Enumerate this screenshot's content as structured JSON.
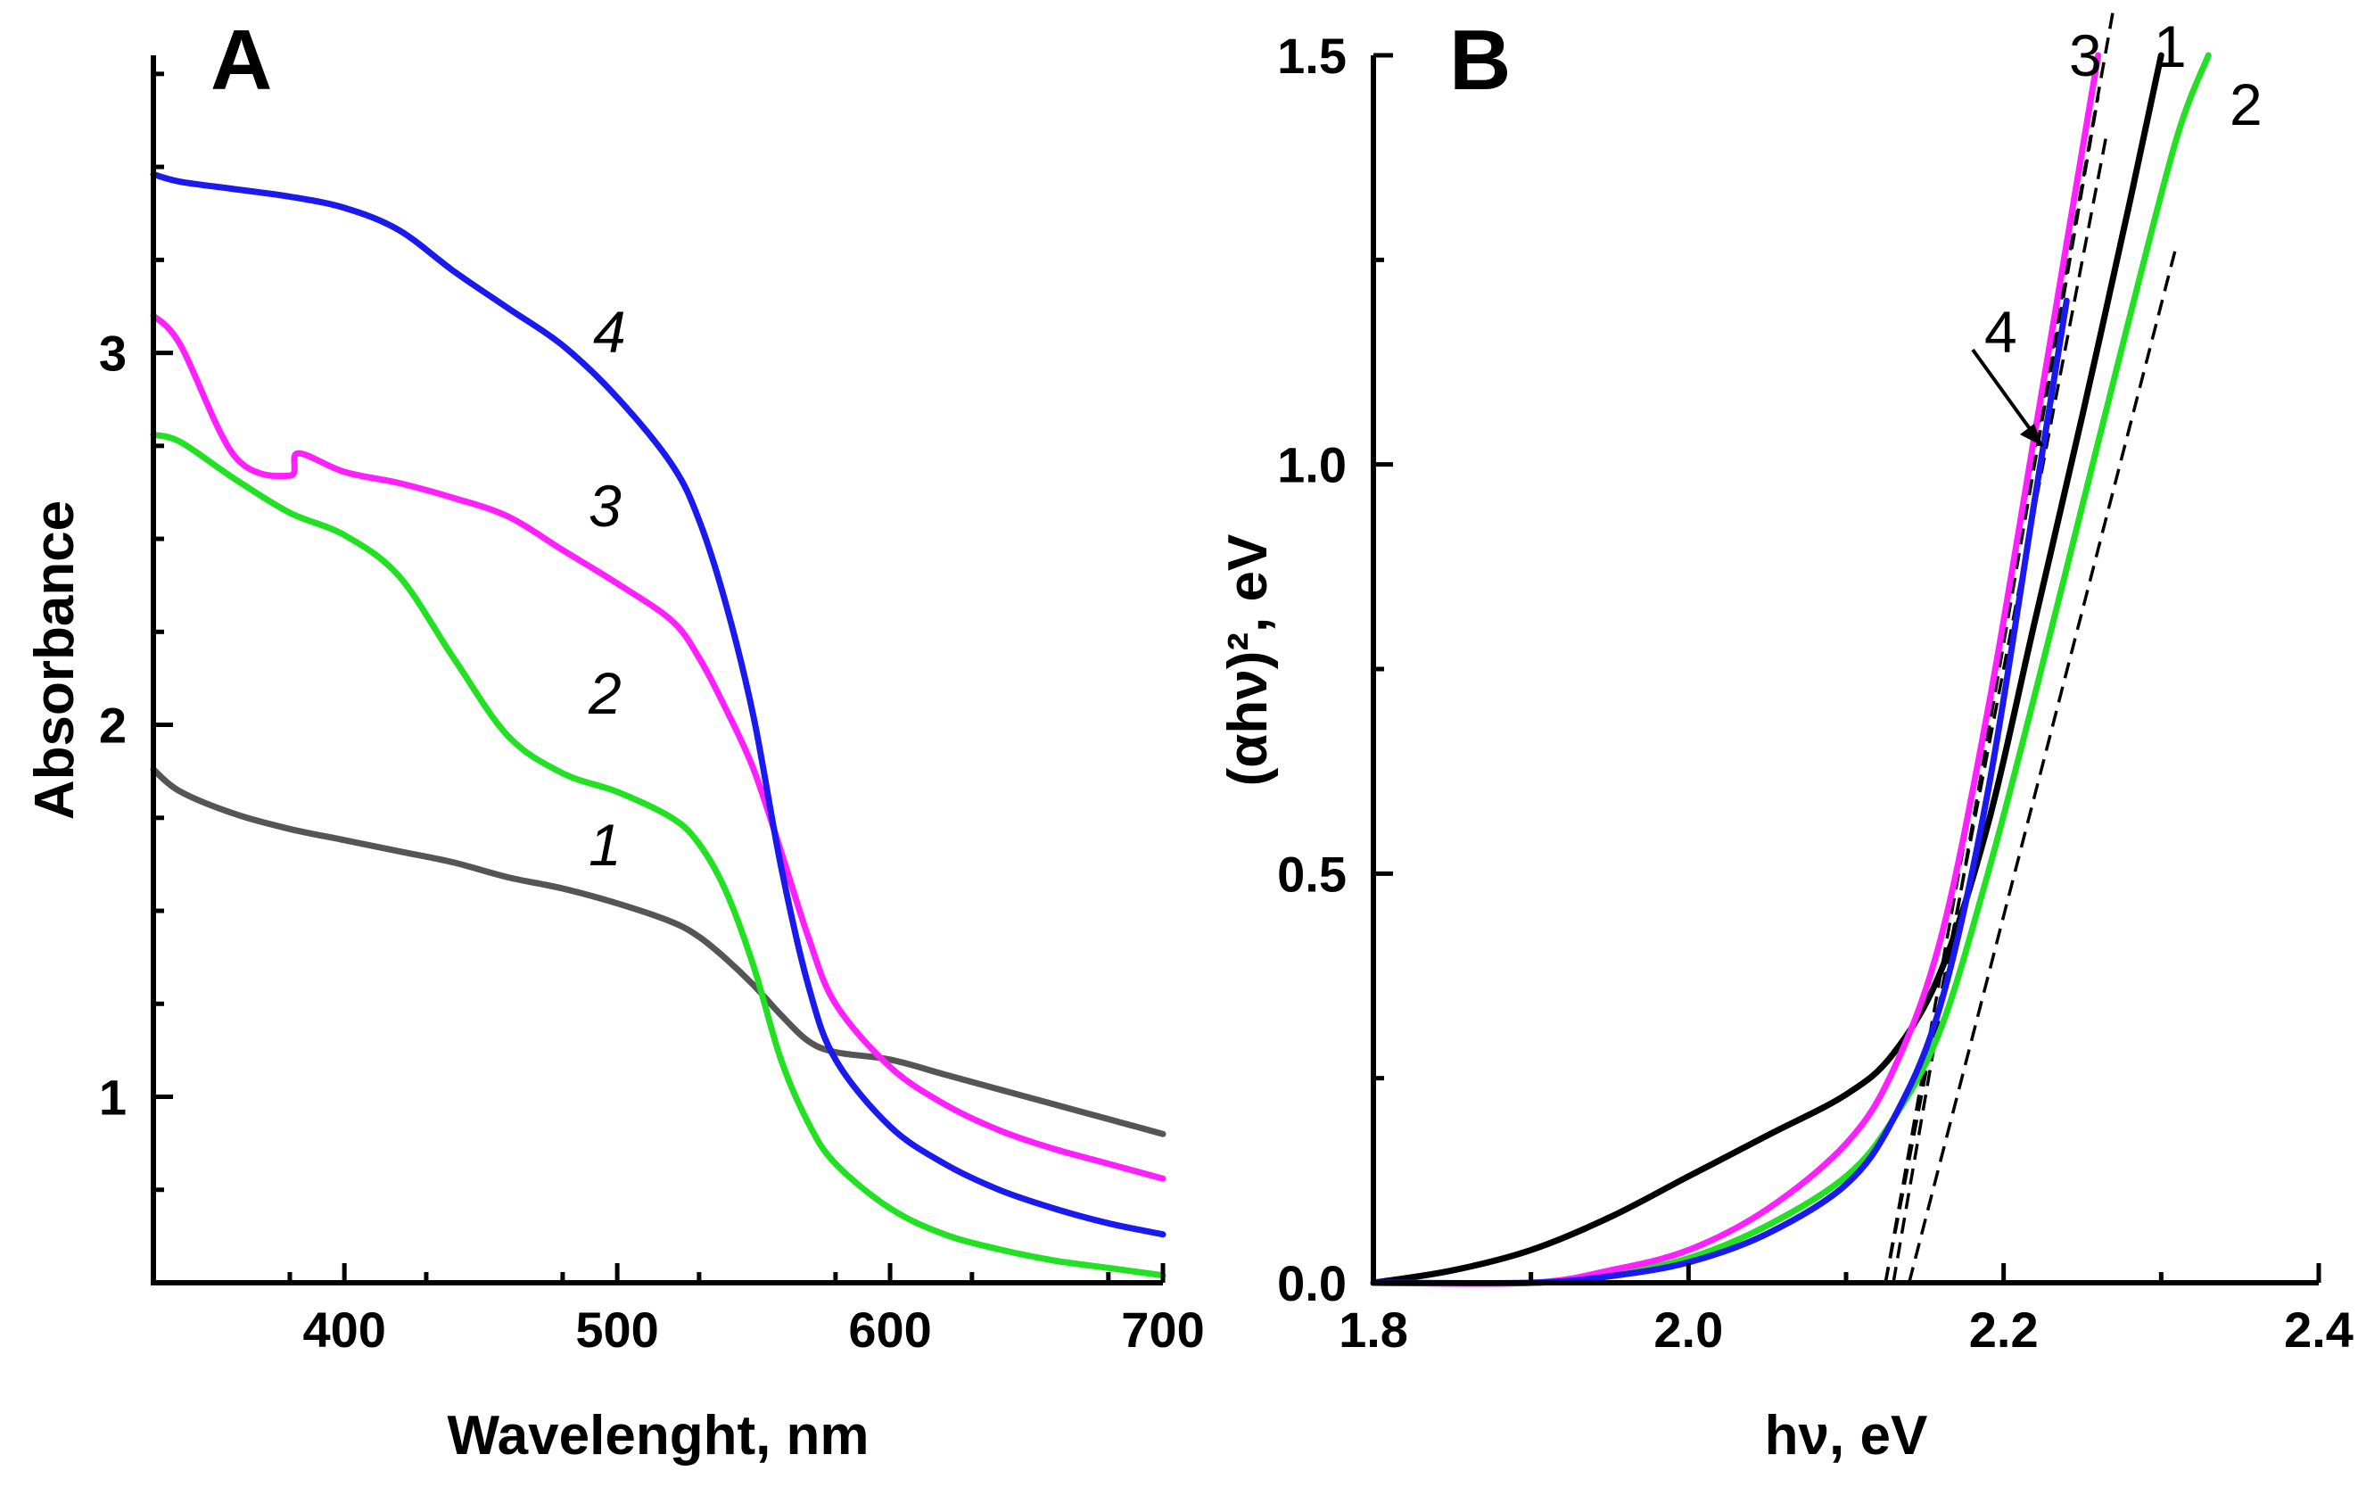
{
  "chart_data": [
    {
      "type": "line",
      "panel": "A",
      "title": "",
      "xlabel": "Wavelenght, nm",
      "ylabel": "Absorbance",
      "xlim": [
        330,
        700
      ],
      "ylim": [
        0.5,
        3.8
      ],
      "x_ticks": [
        400,
        500,
        600,
        700
      ],
      "x_tick_labels": [
        "400",
        "500",
        "600",
        "700"
      ],
      "y_ticks": [
        1,
        2,
        3
      ],
      "y_tick_labels": [
        "1",
        "2",
        "3"
      ],
      "grid": false,
      "series": [
        {
          "name": "1",
          "label": "1",
          "color": "#555555",
          "x": [
            330,
            340,
            360,
            380,
            400,
            420,
            440,
            460,
            480,
            500,
            520,
            530,
            540,
            550,
            560,
            570,
            580,
            600,
            620,
            640,
            660,
            680,
            700
          ],
          "y": [
            1.88,
            1.82,
            1.76,
            1.72,
            1.69,
            1.66,
            1.63,
            1.59,
            1.56,
            1.52,
            1.47,
            1.43,
            1.37,
            1.3,
            1.22,
            1.15,
            1.12,
            1.1,
            1.06,
            1.02,
            0.98,
            0.94,
            0.9
          ]
        },
        {
          "name": "2",
          "label": "2",
          "color": "#22e022",
          "x": [
            330,
            340,
            360,
            380,
            400,
            420,
            440,
            460,
            480,
            500,
            520,
            530,
            540,
            550,
            560,
            570,
            580,
            600,
            620,
            640,
            660,
            680,
            700
          ],
          "y": [
            2.78,
            2.76,
            2.66,
            2.57,
            2.51,
            2.4,
            2.18,
            1.97,
            1.87,
            1.82,
            1.75,
            1.68,
            1.55,
            1.35,
            1.1,
            0.93,
            0.82,
            0.7,
            0.63,
            0.59,
            0.56,
            0.54,
            0.52
          ]
        },
        {
          "name": "3",
          "label": "3",
          "color": "#ff20ff",
          "x": [
            330,
            340,
            360,
            380,
            383,
            400,
            420,
            440,
            460,
            480,
            500,
            520,
            530,
            540,
            550,
            560,
            570,
            580,
            600,
            620,
            640,
            660,
            680,
            700
          ],
          "y": [
            3.1,
            3.02,
            2.72,
            2.67,
            2.73,
            2.68,
            2.65,
            2.61,
            2.56,
            2.47,
            2.38,
            2.28,
            2.18,
            2.04,
            1.88,
            1.66,
            1.43,
            1.25,
            1.08,
            0.98,
            0.91,
            0.86,
            0.82,
            0.78
          ]
        },
        {
          "name": "4",
          "label": "4",
          "color": "#1a1aee",
          "x": [
            330,
            340,
            360,
            380,
            400,
            420,
            440,
            460,
            480,
            500,
            520,
            530,
            540,
            550,
            560,
            570,
            580,
            600,
            620,
            640,
            660,
            680,
            700
          ],
          "y": [
            3.48,
            3.46,
            3.44,
            3.42,
            3.39,
            3.33,
            3.22,
            3.12,
            3.02,
            2.88,
            2.7,
            2.55,
            2.32,
            2.02,
            1.62,
            1.3,
            1.1,
            0.92,
            0.82,
            0.75,
            0.7,
            0.66,
            0.63
          ]
        }
      ],
      "annotations": [
        "1",
        "2",
        "3",
        "4"
      ]
    },
    {
      "type": "line",
      "panel": "B",
      "title": "",
      "xlabel": "hν, eV",
      "ylabel": "(αhν)², eV",
      "xlim": [
        1.8,
        2.4
      ],
      "ylim": [
        0.0,
        1.5
      ],
      "x_ticks": [
        1.8,
        2.0,
        2.2,
        2.4
      ],
      "x_tick_labels": [
        "1.8",
        "2.0",
        "2.2",
        "2.4"
      ],
      "y_ticks": [
        0.0,
        0.5,
        1.0,
        1.5
      ],
      "y_tick_labels": [
        "0.0",
        "0.5",
        "1.0",
        "1.5"
      ],
      "grid": false,
      "series": [
        {
          "name": "1",
          "label": "1",
          "color": "#000000",
          "x": [
            1.8,
            1.85,
            1.9,
            1.95,
            2.0,
            2.05,
            2.1,
            2.13,
            2.16,
            2.19,
            2.22,
            2.25,
            2.28,
            2.3
          ],
          "y": [
            0.0,
            0.015,
            0.04,
            0.08,
            0.13,
            0.18,
            0.23,
            0.28,
            0.38,
            0.56,
            0.81,
            1.06,
            1.32,
            1.5
          ]
        },
        {
          "name": "2",
          "label": "2",
          "color": "#22e022",
          "x": [
            1.8,
            1.9,
            1.95,
            2.0,
            2.05,
            2.1,
            2.13,
            2.16,
            2.19,
            2.22,
            2.25,
            2.28,
            2.31,
            2.33
          ],
          "y": [
            0.0,
            0.0,
            0.01,
            0.03,
            0.07,
            0.13,
            0.2,
            0.31,
            0.5,
            0.72,
            0.95,
            1.18,
            1.4,
            1.5
          ]
        },
        {
          "name": "3",
          "label": "3",
          "color": "#ff20ff",
          "x": [
            1.8,
            1.9,
            1.95,
            2.0,
            2.05,
            2.1,
            2.13,
            2.16,
            2.19,
            2.22,
            2.24,
            2.26
          ],
          "y": [
            0.0,
            0.0,
            0.015,
            0.04,
            0.09,
            0.17,
            0.26,
            0.42,
            0.7,
            1.04,
            1.27,
            1.5
          ]
        },
        {
          "name": "4",
          "label": "4",
          "color": "#1a1aee",
          "x": [
            1.8,
            1.9,
            1.95,
            2.0,
            2.05,
            2.1,
            2.13,
            2.16,
            2.19,
            2.22,
            2.24
          ],
          "y": [
            0.0,
            0.0,
            0.008,
            0.025,
            0.06,
            0.12,
            0.2,
            0.34,
            0.6,
            0.96,
            1.2
          ]
        }
      ],
      "fit_lines": [
        {
          "for": "1",
          "x": [
            2.125,
            2.265
          ],
          "y": [
            0.0,
            1.4
          ]
        },
        {
          "for": "2",
          "x": [
            2.14,
            2.31
          ],
          "y": [
            0.0,
            1.27
          ]
        },
        {
          "for": "3",
          "x": [
            2.125,
            2.27
          ],
          "y": [
            0.0,
            1.56
          ]
        },
        {
          "for": "4",
          "x": [
            2.13,
            2.26
          ],
          "y": [
            0.0,
            1.45
          ]
        }
      ],
      "annotations": [
        "1",
        "2",
        "3",
        "4"
      ]
    }
  ]
}
